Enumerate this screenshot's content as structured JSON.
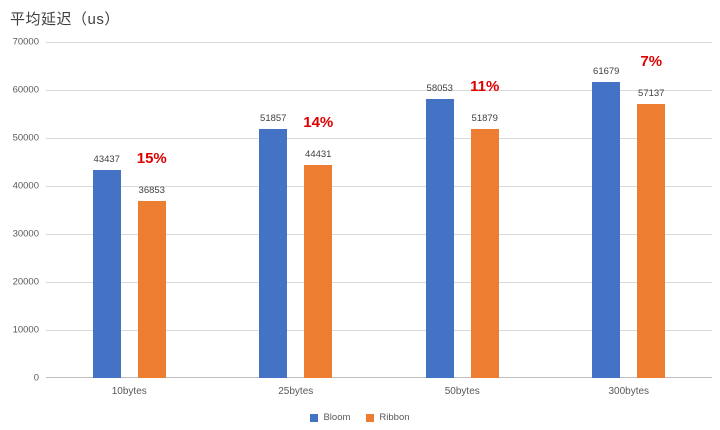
{
  "chart_data": {
    "type": "bar",
    "title": "平均延迟（us）",
    "categories": [
      "10bytes",
      "25bytes",
      "50bytes",
      "300bytes"
    ],
    "series": [
      {
        "name": "Bloom",
        "color": "#4472C4",
        "values": [
          43437,
          51857,
          58053,
          61679
        ]
      },
      {
        "name": "Ribbon",
        "color": "#ED7D31",
        "values": [
          36853,
          44431,
          51879,
          57137
        ]
      }
    ],
    "annotations": [
      "15%",
      "14%",
      "11%",
      "7%"
    ],
    "annotation_color": "#DE0000",
    "ylim": [
      0,
      70000
    ],
    "ytick_interval": 10000,
    "yticks": [
      0,
      10000,
      20000,
      30000,
      40000,
      50000,
      60000,
      70000
    ],
    "grid": true,
    "legend_position": "bottom",
    "colors": {
      "gridline": "#D9D9D9",
      "axis_line": "#BFBFBF",
      "axis_text": "#595959",
      "value_label_text": "#404040",
      "title_text": "#404040",
      "background": "#FFFFFF"
    }
  }
}
